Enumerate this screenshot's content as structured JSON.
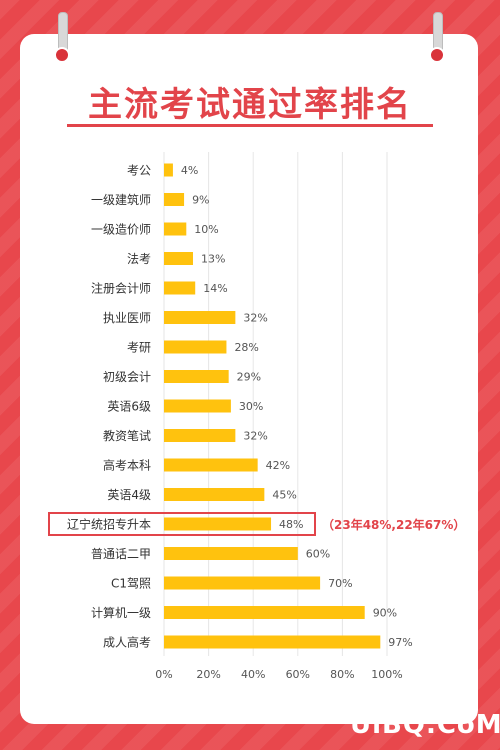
{
  "title": "主流考试通过率排名",
  "watermark": "UiBQ.CoM",
  "chart_data": {
    "type": "bar",
    "orientation": "horizontal",
    "categories": [
      "考公",
      "一级建筑师",
      "一级造价师",
      "法考",
      "注册会计师",
      "执业医师",
      "考研",
      "初级会计",
      "英语6级",
      "教资笔试",
      "高考本科",
      "英语4级",
      "辽宁统招专升本",
      "普通话二甲",
      "C1驾照",
      "计算机一级",
      "成人高考"
    ],
    "values": [
      4,
      9,
      10,
      13,
      14,
      32,
      28,
      29,
      30,
      32,
      42,
      45,
      48,
      60,
      70,
      90,
      97
    ],
    "value_labels": [
      "4%",
      "9%",
      "10%",
      "13%",
      "14%",
      "32%",
      "28%",
      "29%",
      "30%",
      "32%",
      "42%",
      "45%",
      "48%",
      "60%",
      "70%",
      "90%",
      "97%"
    ],
    "xlim": [
      0,
      100
    ],
    "xticks": [
      "0%",
      "20%",
      "40%",
      "60%",
      "80%",
      "100%"
    ],
    "grid": true,
    "bar_color": "#ffc20e",
    "highlight": {
      "category": "辽宁统招专升本",
      "note": "（23年48%,22年67%）",
      "color": "#e2444a"
    }
  }
}
